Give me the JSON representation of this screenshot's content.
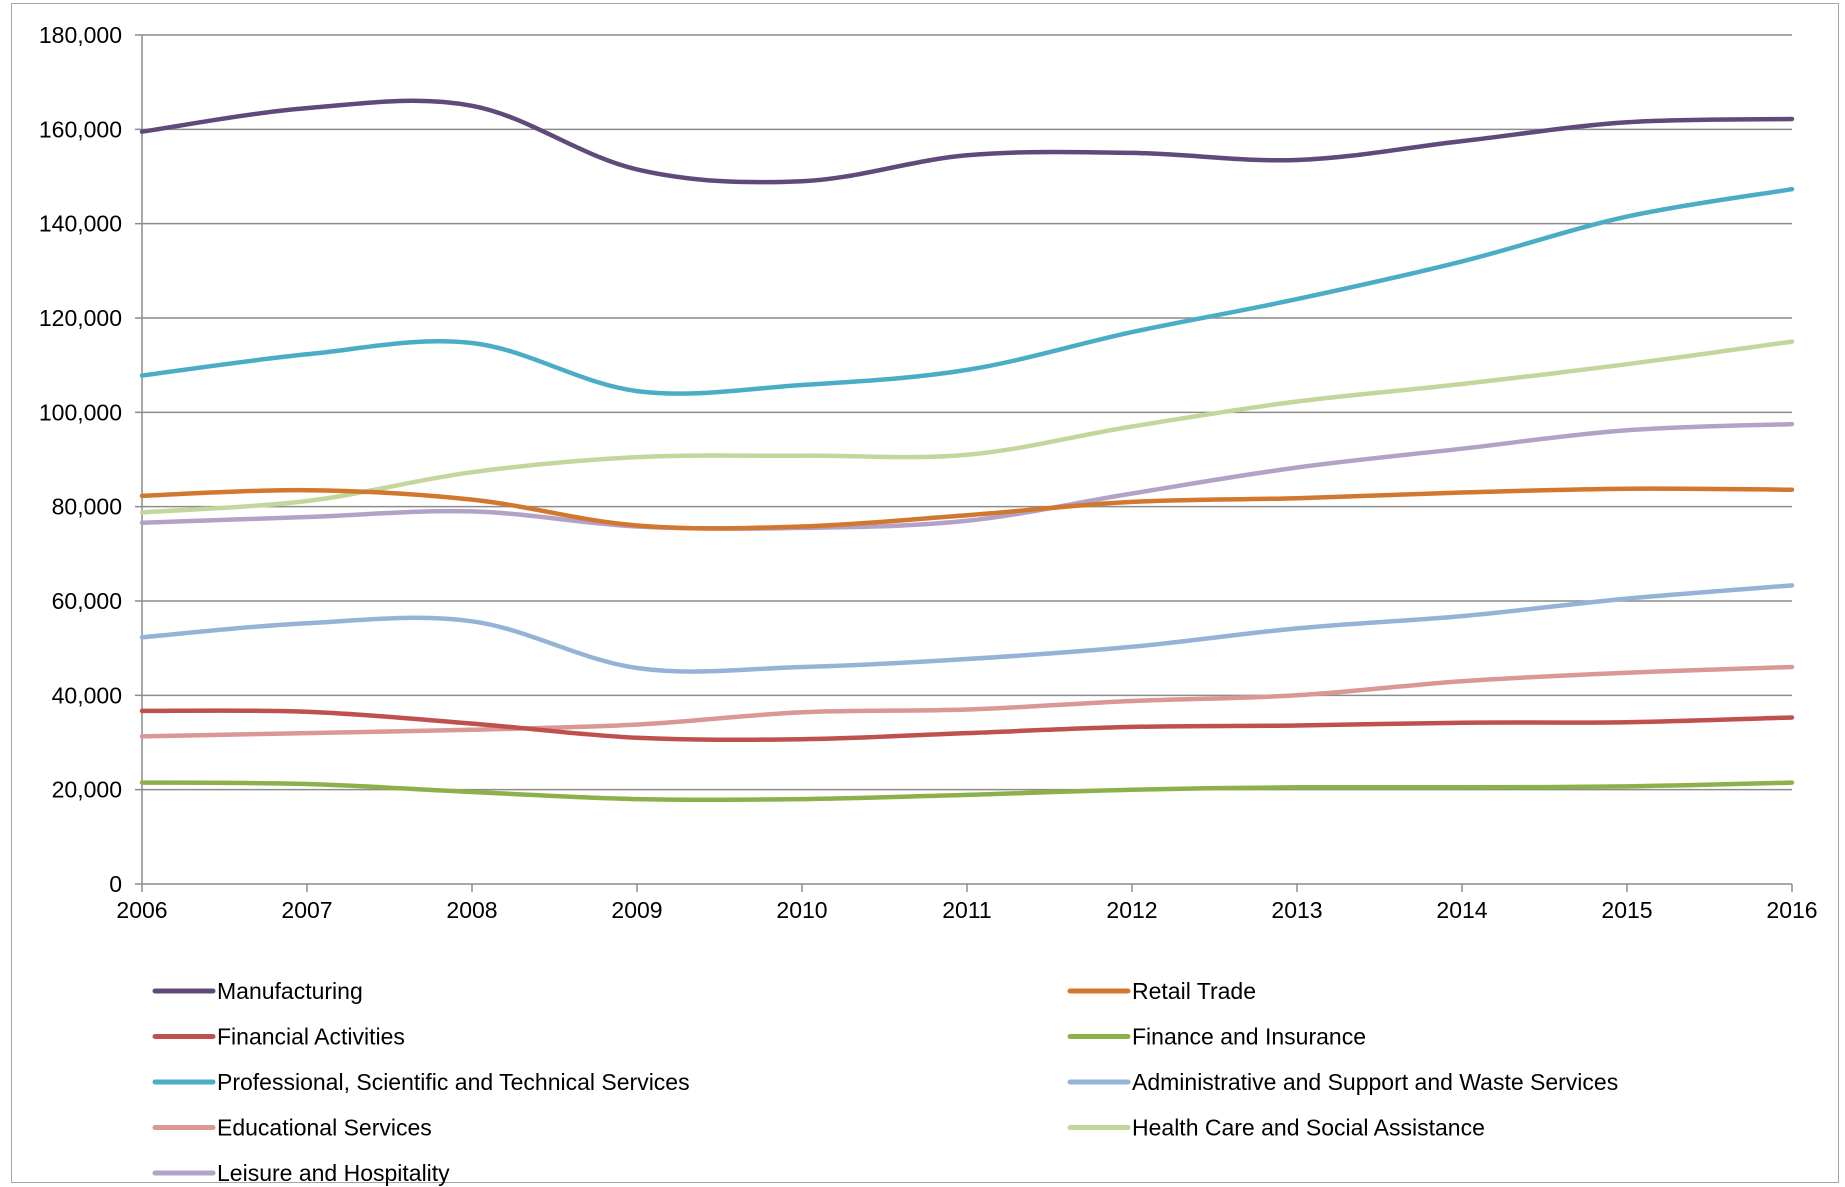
{
  "chart_data": {
    "type": "line",
    "title": "",
    "xlabel": "",
    "ylabel": "",
    "x": [
      "2006",
      "2007",
      "2008",
      "2009",
      "2010",
      "2011",
      "2012",
      "2013",
      "2014",
      "2015",
      "2016"
    ],
    "ylim": [
      0,
      180000
    ],
    "yticks": [
      0,
      20000,
      40000,
      60000,
      80000,
      100000,
      120000,
      140000,
      160000,
      180000
    ],
    "ytick_labels": [
      "0",
      "20,000",
      "40,000",
      "60,000",
      "80,000",
      "100,000",
      "120,000",
      "140,000",
      "160,000",
      "180,000"
    ],
    "grid": "horizontal",
    "legend_position": "bottom",
    "series": [
      {
        "name": "Manufacturing",
        "color": "#604a7b",
        "values": [
          159500,
          164500,
          165000,
          151500,
          149000,
          154500,
          155000,
          153500,
          157500,
          161500,
          162200
        ]
      },
      {
        "name": "Retail Trade",
        "color": "#d2772e",
        "values": [
          82300,
          83500,
          81500,
          76000,
          75800,
          78200,
          81000,
          81800,
          83000,
          83800,
          83600
        ]
      },
      {
        "name": "Financial Activities",
        "color": "#c0504d",
        "values": [
          36700,
          36500,
          34000,
          31000,
          30700,
          32000,
          33300,
          33600,
          34200,
          34300,
          35300
        ]
      },
      {
        "name": "Finance and Insurance",
        "color": "#8db14a",
        "values": [
          21500,
          21200,
          19500,
          18000,
          18000,
          18900,
          20000,
          20500,
          20500,
          20700,
          21500
        ]
      },
      {
        "name": "Professional, Scientific and Technical Services",
        "color": "#4bacc6",
        "values": [
          107800,
          112300,
          114700,
          104500,
          105800,
          109000,
          117000,
          124000,
          132000,
          141500,
          147300
        ]
      },
      {
        "name": "Administrative and Support and Waste Services",
        "color": "#95b3d7",
        "values": [
          52300,
          55300,
          55700,
          45800,
          46000,
          47700,
          50300,
          54200,
          56800,
          60500,
          63300
        ]
      },
      {
        "name": "Educational Services",
        "color": "#d99795",
        "values": [
          31300,
          32000,
          32700,
          33800,
          36400,
          37000,
          38800,
          40000,
          43000,
          44800,
          46000
        ]
      },
      {
        "name": "Health Care and Social Assistance",
        "color": "#c3d69b",
        "values": [
          78800,
          81200,
          87300,
          90500,
          90800,
          91000,
          97000,
          102300,
          106000,
          110200,
          115000
        ]
      },
      {
        "name": "Leisure and Hospitality",
        "color": "#b3a2c7",
        "values": [
          76600,
          77800,
          79000,
          75800,
          75500,
          77000,
          82800,
          88300,
          92300,
          96200,
          97500
        ]
      }
    ]
  }
}
